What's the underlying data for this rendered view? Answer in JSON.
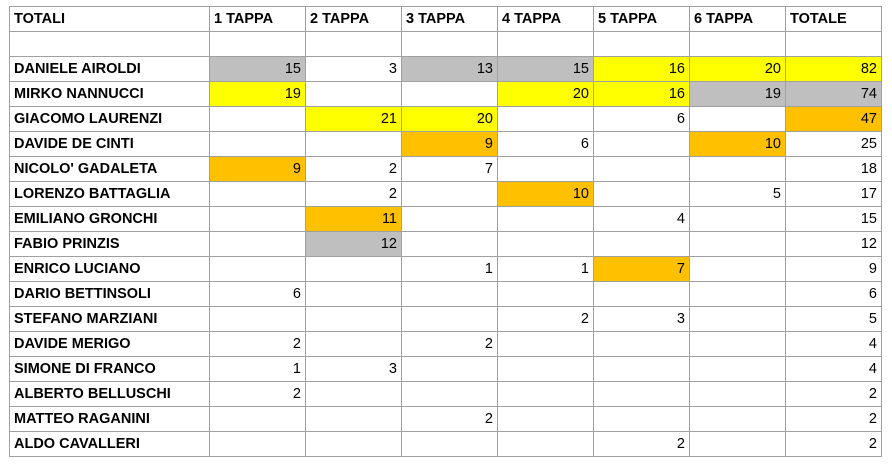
{
  "header": [
    "TOTALI",
    "1 TAPPA",
    "2 TAPPA",
    "3 TAPPA",
    "4 TAPPA",
    "5 TAPPA",
    "6 TAPPA",
    "TOTALE"
  ],
  "colors": {
    "gray": "#bfbfbf",
    "yellow": "#ffff00",
    "orange": "#ffc000"
  },
  "rows": [
    {
      "name": "DANIELE AIROLDI",
      "values": [
        "15",
        "3",
        "13",
        "15",
        "16",
        "20",
        "82"
      ],
      "fills": [
        "gray",
        "",
        "gray",
        "gray",
        "yellow",
        "yellow",
        "yellow"
      ]
    },
    {
      "name": "MIRKO NANNUCCI",
      "values": [
        "19",
        "",
        "",
        "20",
        "16",
        "19",
        "74"
      ],
      "fills": [
        "yellow",
        "",
        "",
        "yellow",
        "yellow",
        "gray",
        "gray"
      ]
    },
    {
      "name": "GIACOMO LAURENZI",
      "values": [
        "",
        "21",
        "20",
        "",
        "6",
        "",
        "47"
      ],
      "fills": [
        "",
        "yellow",
        "yellow",
        "",
        "",
        "",
        "orange"
      ]
    },
    {
      "name": "DAVIDE DE CINTI",
      "values": [
        "",
        "",
        "9",
        "6",
        "",
        "10",
        "25"
      ],
      "fills": [
        "",
        "",
        "orange",
        "",
        "",
        "orange",
        ""
      ]
    },
    {
      "name": "NICOLO' GADALETA",
      "values": [
        "9",
        "2",
        "7",
        "",
        "",
        "",
        "18"
      ],
      "fills": [
        "orange",
        "",
        "",
        "",
        "",
        "",
        ""
      ]
    },
    {
      "name": "LORENZO BATTAGLIA",
      "values": [
        "",
        "2",
        "",
        "10",
        "",
        "5",
        "17"
      ],
      "fills": [
        "",
        "",
        "",
        "orange",
        "",
        "",
        ""
      ]
    },
    {
      "name": "EMILIANO GRONCHI",
      "values": [
        "",
        "11",
        "",
        "",
        "4",
        "",
        "15"
      ],
      "fills": [
        "",
        "orange",
        "",
        "",
        "",
        "",
        ""
      ]
    },
    {
      "name": "FABIO PRINZIS",
      "values": [
        "",
        "12",
        "",
        "",
        "",
        "",
        "12"
      ],
      "fills": [
        "",
        "gray",
        "",
        "",
        "",
        "",
        ""
      ]
    },
    {
      "name": "ENRICO LUCIANO",
      "values": [
        "",
        "",
        "1",
        "1",
        "7",
        "",
        "9"
      ],
      "fills": [
        "",
        "",
        "",
        "",
        "orange",
        "",
        ""
      ]
    },
    {
      "name": "DARIO BETTINSOLI",
      "values": [
        "6",
        "",
        "",
        "",
        "",
        "",
        "6"
      ],
      "fills": [
        "",
        "",
        "",
        "",
        "",
        "",
        ""
      ]
    },
    {
      "name": "STEFANO MARZIANI",
      "values": [
        "",
        "",
        "",
        "2",
        "3",
        "",
        "5"
      ],
      "fills": [
        "",
        "",
        "",
        "",
        "",
        "",
        ""
      ]
    },
    {
      "name": "DAVIDE MERIGO",
      "values": [
        "2",
        "",
        "2",
        "",
        "",
        "",
        "4"
      ],
      "fills": [
        "",
        "",
        "",
        "",
        "",
        "",
        ""
      ]
    },
    {
      "name": "SIMONE DI FRANCO",
      "values": [
        "1",
        "3",
        "",
        "",
        "",
        "",
        "4"
      ],
      "fills": [
        "",
        "",
        "",
        "",
        "",
        "",
        ""
      ]
    },
    {
      "name": "ALBERTO BELLUSCHI",
      "values": [
        "2",
        "",
        "",
        "",
        "",
        "",
        "2"
      ],
      "fills": [
        "",
        "",
        "",
        "",
        "",
        "",
        ""
      ]
    },
    {
      "name": "MATTEO RAGANINI",
      "values": [
        "",
        "",
        "2",
        "",
        "",
        "",
        "2"
      ],
      "fills": [
        "",
        "",
        "",
        "",
        "",
        "",
        ""
      ]
    },
    {
      "name": "ALDO CAVALLERI",
      "values": [
        "",
        "",
        "",
        "",
        "2",
        "",
        "2"
      ],
      "fills": [
        "",
        "",
        "",
        "",
        "",
        "",
        ""
      ]
    }
  ]
}
